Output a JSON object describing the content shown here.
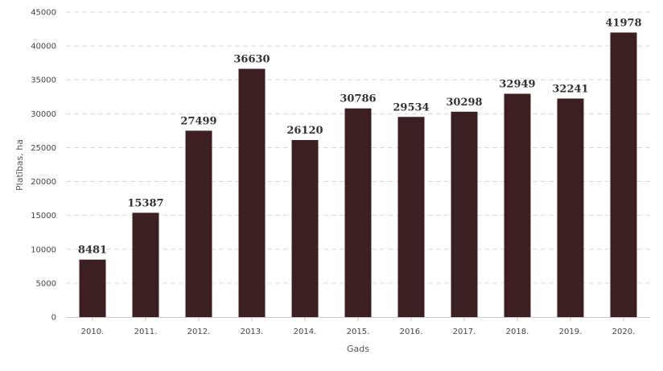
{
  "chart_data": {
    "type": "bar",
    "title": "",
    "xlabel": "Gads",
    "ylabel": "Platības, ha",
    "categories": [
      "2010.",
      "2011.",
      "2012.",
      "2013.",
      "2014.",
      "2015.",
      "2016.",
      "2017.",
      "2018.",
      "2019.",
      "2020."
    ],
    "values": [
      8481,
      15387,
      27499,
      36630,
      26120,
      30786,
      29534,
      30298,
      32949,
      32241,
      41978
    ],
    "data_labels": [
      "8481",
      "15387",
      "27499",
      "36630",
      "26120",
      "30786",
      "29534",
      "30298",
      "32949",
      "32241",
      "41978"
    ],
    "ylim": [
      0,
      45000
    ],
    "yticks": [
      0,
      5000,
      10000,
      15000,
      20000,
      25000,
      30000,
      35000,
      40000,
      45000
    ],
    "ytick_labels": [
      "0",
      "5000",
      "10000",
      "15000",
      "20000",
      "25000",
      "30000",
      "35000",
      "40000",
      "45000"
    ],
    "grid": true,
    "legend": "none",
    "bar_color": "#3c1f20",
    "grid_color": "#d9d9d9",
    "axis_color": "#c8c8c8"
  }
}
